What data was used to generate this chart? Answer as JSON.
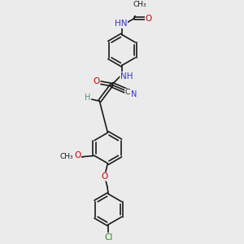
{
  "bg_color": "#ebebeb",
  "bond_color": "#1a1a1a",
  "atom_colors": {
    "N": "#3333cc",
    "O": "#cc0000",
    "Cl": "#228B22",
    "C": "#1a1a1a",
    "H": "#4f9090"
  },
  "figsize": [
    3.0,
    3.0
  ],
  "dpi": 100,
  "xlim": [
    -1.5,
    4.5
  ],
  "ylim": [
    -5.5,
    5.5
  ]
}
